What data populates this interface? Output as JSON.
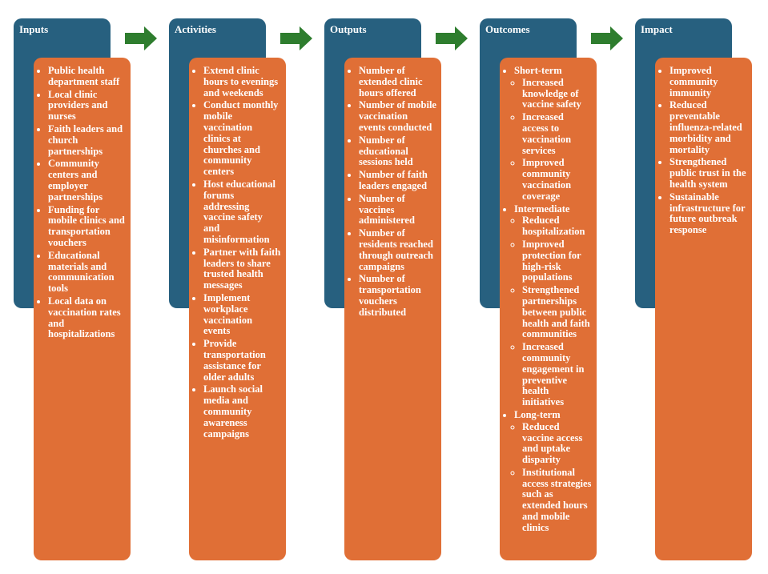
{
  "columns": [
    {
      "title": "Inputs",
      "items": [
        "Public health department staff",
        "Local clinic providers and nurses",
        "Faith leaders and church partnerships",
        "Community centers and employer partnerships",
        "Funding for mobile clinics and transportation vouchers",
        "Educational materials and communication tools",
        "Local data on vaccination rates and hospitalizations"
      ]
    },
    {
      "title": "Activities",
      "items": [
        "Extend clinic hours to evenings and weekends",
        "Conduct monthly mobile vaccination clinics at churches and community centers",
        "Host educational forums addressing vaccine safety and misinformation",
        "Partner with faith leaders to share trusted health messages",
        "Implement workplace vaccination events",
        "Provide transportation assistance for older adults",
        "Launch social media and community awareness campaigns"
      ]
    },
    {
      "title": "Outputs",
      "items": [
        "Number of extended clinic hours offered",
        "Number of mobile vaccination events conducted",
        "Number of educational sessions held",
        "Number of faith leaders engaged",
        "Number of vaccines administered",
        "Number of residents reached through outreach campaigns",
        "Number of transportation vouchers distributed"
      ]
    },
    {
      "title": "Outcomes",
      "groups": [
        {
          "heading": "Short-term",
          "items": [
            "Increased knowledge of vaccine safety",
            "Increased access to vaccination services",
            "Improved community vaccination coverage"
          ]
        },
        {
          "heading": "Intermediate",
          "items": [
            "Reduced hospitalization",
            "Improved protection for high-risk populations",
            "Strengthened partnerships between public health and faith communities",
            "Increased community engagement in preventive health initiatives"
          ]
        },
        {
          "heading": "Long-term",
          "items": [
            "Reduced vaccine access and uptake disparity",
            "Institutional access strategies such as extended hours and mobile clinics"
          ]
        }
      ]
    },
    {
      "title": "Impact",
      "items": [
        "Improved community immunity",
        "Reduced preventable influenza-related morbidity and mortality",
        "Strengthened public trust in the health system",
        "Sustainable infrastructure for future outbreak response"
      ]
    }
  ]
}
